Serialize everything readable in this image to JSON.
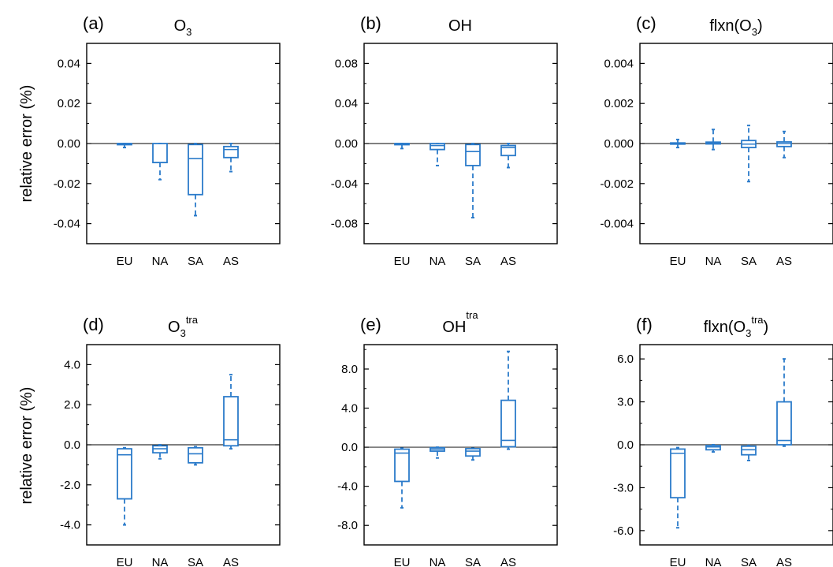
{
  "figure": {
    "ylabel_top": "relative error (%)",
    "ylabel_bottom": "relative error (%)",
    "box_color": "#2b7bca",
    "zero_line_color": "#000000"
  },
  "chart_data": [
    {
      "type": "box",
      "panel_letter": "(a)",
      "title_base": "O",
      "title_sub": "3",
      "title_sup": "",
      "title_pre": "",
      "title_post": "",
      "categories": [
        "EU",
        "NA",
        "SA",
        "AS"
      ],
      "yticks": [
        -0.04,
        -0.02,
        0.0,
        0.02,
        0.04
      ],
      "ytick_labels": [
        "-0.04",
        "-0.02",
        "0.00",
        "0.02",
        "0.04"
      ],
      "ylim": [
        -0.05,
        0.05
      ],
      "boxes": [
        {
          "min": -0.002,
          "q1": -0.0005,
          "median": 0.0,
          "q3": 0.0,
          "max": 0.0
        },
        {
          "min": -0.018,
          "q1": -0.0095,
          "median": -0.0095,
          "q3": 0.0,
          "max": 0.0
        },
        {
          "min": -0.036,
          "q1": -0.0255,
          "median": -0.0075,
          "q3": -0.0005,
          "max": 0.0
        },
        {
          "min": -0.014,
          "q1": -0.007,
          "median": -0.003,
          "q3": -0.0015,
          "max": 0.0
        }
      ]
    },
    {
      "type": "box",
      "panel_letter": "(b)",
      "title_base": "OH",
      "title_sub": "",
      "title_sup": "",
      "title_pre": "",
      "title_post": "",
      "categories": [
        "EU",
        "NA",
        "SA",
        "AS"
      ],
      "yticks": [
        -0.08,
        -0.04,
        0.0,
        0.04,
        0.08
      ],
      "ytick_labels": [
        "-0.08",
        "-0.04",
        "0.00",
        "0.04",
        "0.08"
      ],
      "ylim": [
        -0.1,
        0.1
      ],
      "boxes": [
        {
          "min": -0.005,
          "q1": -0.001,
          "median": 0.0,
          "q3": 0.0,
          "max": 0.0
        },
        {
          "min": -0.022,
          "q1": -0.006,
          "median": -0.002,
          "q3": 0.0,
          "max": 0.0
        },
        {
          "min": -0.074,
          "q1": -0.022,
          "median": -0.008,
          "q3": -0.001,
          "max": 0.0
        },
        {
          "min": -0.024,
          "q1": -0.012,
          "median": -0.004,
          "q3": -0.002,
          "max": 0.0
        }
      ]
    },
    {
      "type": "box",
      "panel_letter": "(c)",
      "title_base": "",
      "title_sub": "3",
      "title_sup": "",
      "title_pre": "flxn(O",
      "title_post": ")",
      "categories": [
        "EU",
        "NA",
        "SA",
        "AS"
      ],
      "yticks": [
        -0.004,
        -0.002,
        0.0,
        0.002,
        0.004
      ],
      "ytick_labels": [
        "-0.004",
        "-0.002",
        "0.000",
        "0.002",
        "0.004"
      ],
      "ylim": [
        -0.005,
        0.005
      ],
      "boxes": [
        {
          "min": -0.0002,
          "q1": -3e-05,
          "median": 0.0,
          "q3": 3e-05,
          "max": 0.0002
        },
        {
          "min": -0.0003,
          "q1": -2e-05,
          "median": 3e-05,
          "q3": 7e-05,
          "max": 0.0007
        },
        {
          "min": -0.0019,
          "q1": -0.0002,
          "median": -3e-05,
          "q3": 0.00015,
          "max": 0.0009
        },
        {
          "min": -0.0007,
          "q1": -0.00015,
          "median": 0.0,
          "q3": 8e-05,
          "max": 0.0006
        }
      ]
    },
    {
      "type": "box",
      "panel_letter": "(d)",
      "title_base": "O",
      "title_sub": "3",
      "title_sup": "tra",
      "title_pre": "",
      "title_post": "",
      "categories": [
        "EU",
        "NA",
        "SA",
        "AS"
      ],
      "yticks": [
        -4.0,
        -2.0,
        0.0,
        2.0,
        4.0
      ],
      "ytick_labels": [
        "-4.0",
        "-2.0",
        "0.0",
        "2.0",
        "4.0"
      ],
      "ylim": [
        -5.0,
        5.0
      ],
      "boxes": [
        {
          "min": -4.0,
          "q1": -2.7,
          "median": -0.5,
          "q3": -0.2,
          "max": -0.15
        },
        {
          "min": -0.7,
          "q1": -0.4,
          "median": -0.2,
          "q3": -0.05,
          "max": 0.0
        },
        {
          "min": -1.0,
          "q1": -0.9,
          "median": -0.45,
          "q3": -0.15,
          "max": -0.1
        },
        {
          "min": -0.2,
          "q1": -0.05,
          "median": 0.25,
          "q3": 2.4,
          "max": 3.5
        }
      ]
    },
    {
      "type": "box",
      "panel_letter": "(e)",
      "title_base": "OH",
      "title_sub": "",
      "title_sup": "tra",
      "title_pre": "",
      "title_post": "",
      "categories": [
        "EU",
        "NA",
        "SA",
        "AS"
      ],
      "yticks": [
        -8.0,
        -4.0,
        0.0,
        4.0,
        8.0
      ],
      "ytick_labels": [
        "-8.0",
        "-4.0",
        "0.0",
        "4.0",
        "8.0"
      ],
      "ylim": [
        -10.0,
        10.5
      ],
      "boxes": [
        {
          "min": -6.2,
          "q1": -3.5,
          "median": -0.6,
          "q3": -0.2,
          "max": -0.1
        },
        {
          "min": -1.1,
          "q1": -0.4,
          "median": -0.2,
          "q3": -0.05,
          "max": 0.0
        },
        {
          "min": -1.3,
          "q1": -0.9,
          "median": -0.4,
          "q3": -0.15,
          "max": -0.1
        },
        {
          "min": -0.2,
          "q1": 0.05,
          "median": 0.7,
          "q3": 4.8,
          "max": 9.8
        }
      ]
    },
    {
      "type": "box",
      "panel_letter": "(f)",
      "title_base": "",
      "title_sub": "3",
      "title_sup": "tra",
      "title_pre": "flxn(O",
      "title_post": ")",
      "categories": [
        "EU",
        "NA",
        "SA",
        "AS"
      ],
      "yticks": [
        -6.0,
        -3.0,
        0.0,
        3.0,
        6.0
      ],
      "ytick_labels": [
        "-6.0",
        "-3.0",
        "0.0",
        "3.0",
        "6.0"
      ],
      "ylim": [
        -7.0,
        7.0
      ],
      "boxes": [
        {
          "min": -5.8,
          "q1": -3.7,
          "median": -0.6,
          "q3": -0.3,
          "max": -0.2
        },
        {
          "min": -0.5,
          "q1": -0.35,
          "median": -0.15,
          "q3": -0.05,
          "max": 0.0
        },
        {
          "min": -1.1,
          "q1": -0.7,
          "median": -0.35,
          "q3": -0.1,
          "max": -0.05
        },
        {
          "min": -0.1,
          "q1": 0.0,
          "median": 0.3,
          "q3": 3.0,
          "max": 6.0
        }
      ]
    }
  ]
}
